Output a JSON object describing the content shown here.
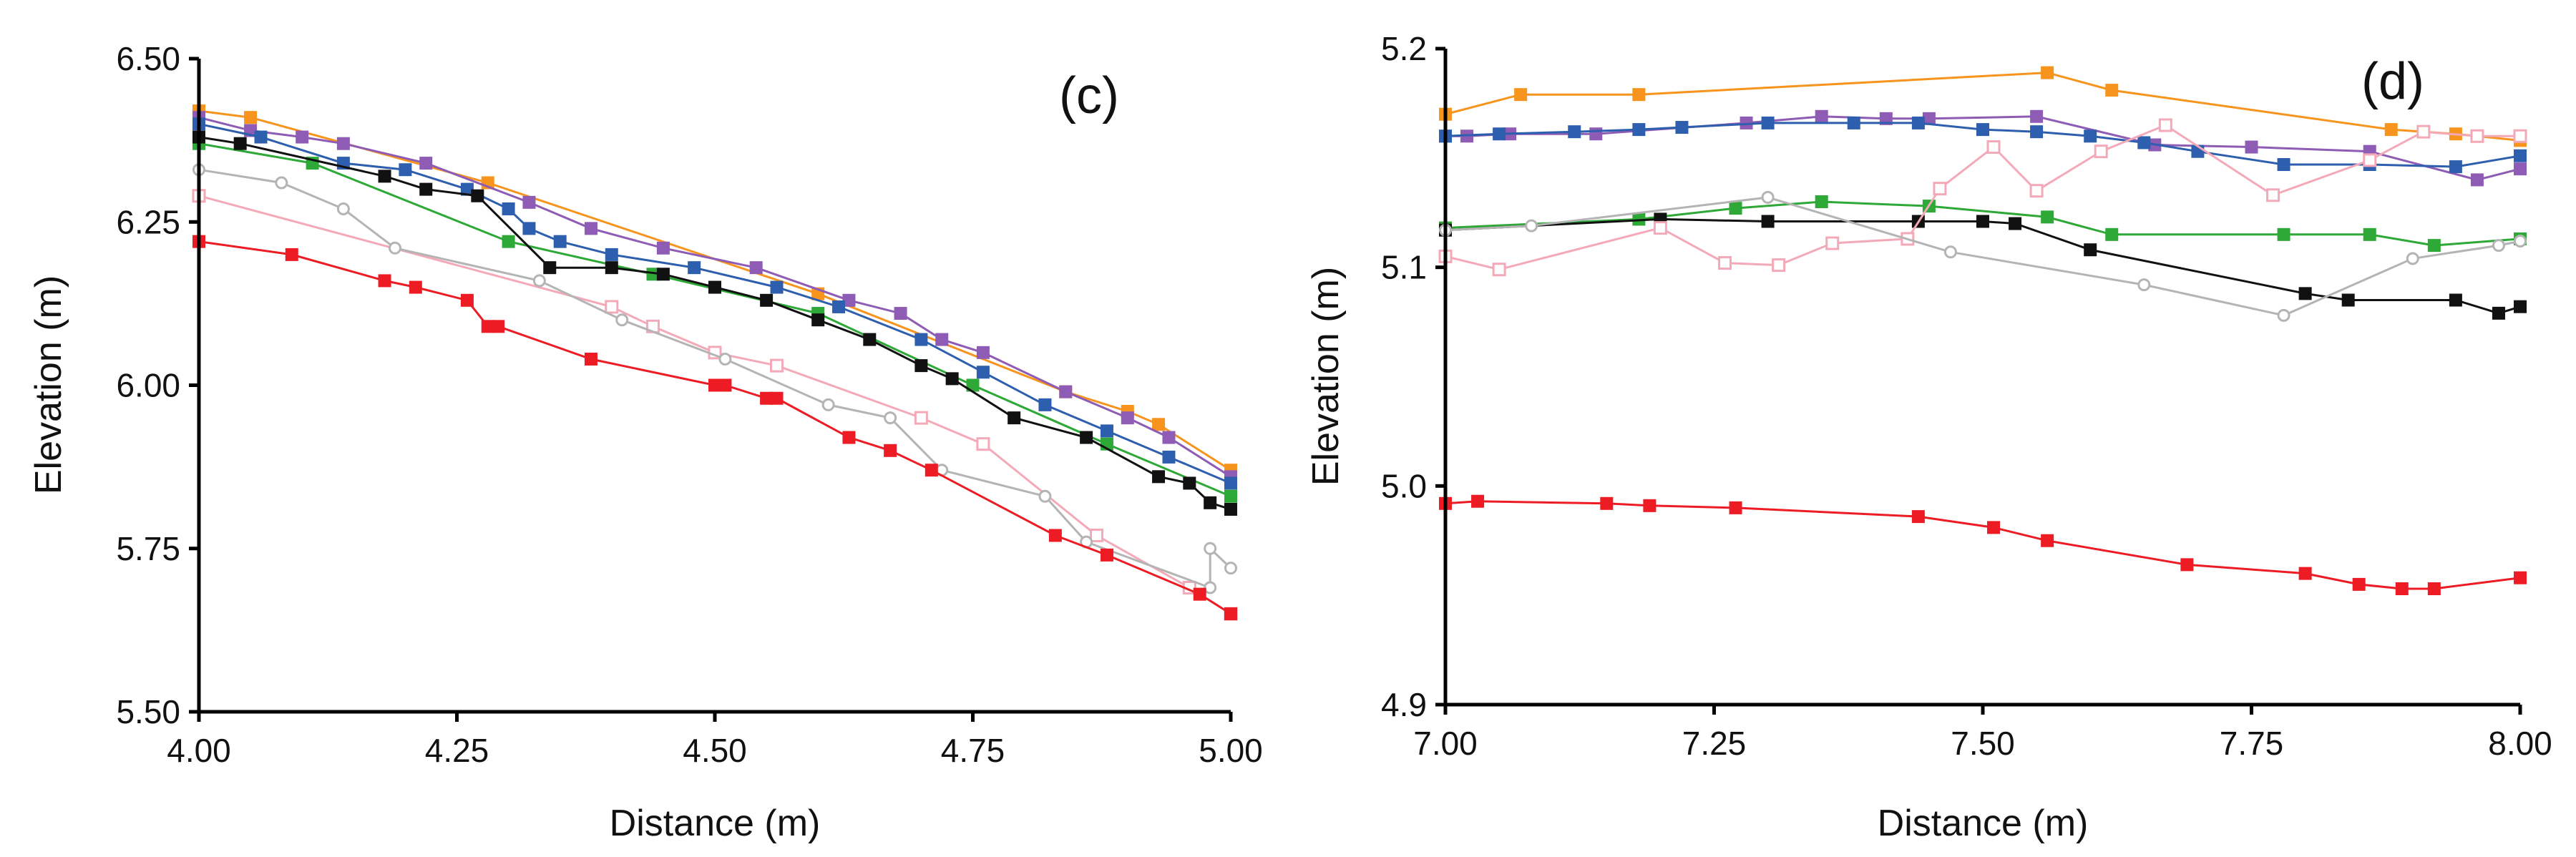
{
  "chart_data": [
    {
      "type": "line",
      "panel_label": "(c)",
      "xlabel": "Distance (m)",
      "ylabel": "Elevation (m)",
      "xlim": [
        4.0,
        5.0
      ],
      "ylim": [
        5.5,
        6.5
      ],
      "xticks": [
        4.0,
        4.25,
        4.5,
        4.75,
        5.0
      ],
      "yticks": [
        5.5,
        5.75,
        6.0,
        6.25,
        6.5
      ],
      "xtick_labels": [
        "4.00",
        "4.25",
        "4.50",
        "4.75",
        "5.00"
      ],
      "ytick_labels": [
        "5.50",
        "5.75",
        "6.00",
        "6.25",
        "6.50"
      ],
      "series": [
        {
          "name": "orange",
          "color": "#f7941d",
          "marker": "filled-square",
          "x": [
            4.0,
            4.05,
            4.28,
            4.6,
            4.84,
            4.9,
            4.93,
            5.0
          ],
          "y": [
            6.42,
            6.41,
            6.31,
            6.14,
            5.99,
            5.96,
            5.94,
            5.87
          ]
        },
        {
          "name": "purple",
          "color": "#8e5bb5",
          "marker": "filled-square",
          "x": [
            4.0,
            4.05,
            4.1,
            4.14,
            4.22,
            4.32,
            4.38,
            4.45,
            4.54,
            4.63,
            4.68,
            4.72,
            4.76,
            4.84,
            4.9,
            4.94,
            5.0
          ],
          "y": [
            6.41,
            6.39,
            6.38,
            6.37,
            6.34,
            6.28,
            6.24,
            6.21,
            6.18,
            6.13,
            6.11,
            6.07,
            6.05,
            5.99,
            5.95,
            5.92,
            5.86
          ]
        },
        {
          "name": "blue",
          "color": "#2e5fae",
          "marker": "filled-square",
          "x": [
            4.0,
            4.06,
            4.14,
            4.2,
            4.26,
            4.3,
            4.32,
            4.35,
            4.4,
            4.48,
            4.56,
            4.62,
            4.7,
            4.76,
            4.82,
            4.88,
            4.94,
            5.0
          ],
          "y": [
            6.4,
            6.38,
            6.34,
            6.33,
            6.3,
            6.27,
            6.24,
            6.22,
            6.2,
            6.18,
            6.15,
            6.12,
            6.07,
            6.02,
            5.97,
            5.93,
            5.89,
            5.85
          ]
        },
        {
          "name": "green",
          "color": "#2ea836",
          "marker": "filled-square",
          "x": [
            4.0,
            4.11,
            4.3,
            4.44,
            4.6,
            4.75,
            4.88,
            5.0
          ],
          "y": [
            6.37,
            6.34,
            6.22,
            6.17,
            6.11,
            6.0,
            5.91,
            5.83
          ]
        },
        {
          "name": "black",
          "color": "#111111",
          "marker": "filled-square",
          "x": [
            4.0,
            4.04,
            4.18,
            4.22,
            4.27,
            4.34,
            4.4,
            4.45,
            4.5,
            4.55,
            4.6,
            4.65,
            4.7,
            4.73,
            4.79,
            4.86,
            4.93,
            4.96,
            4.98,
            5.0
          ],
          "y": [
            6.38,
            6.37,
            6.32,
            6.3,
            6.29,
            6.18,
            6.18,
            6.17,
            6.15,
            6.13,
            6.1,
            6.07,
            6.03,
            6.01,
            5.95,
            5.92,
            5.86,
            5.85,
            5.82,
            5.81
          ]
        },
        {
          "name": "pink",
          "color": "#f4a9b8",
          "marker": "open-square",
          "x": [
            4.0,
            4.4,
            4.44,
            4.5,
            4.56,
            4.7,
            4.76,
            4.87,
            4.96,
            5.0
          ],
          "y": [
            6.29,
            6.12,
            6.09,
            6.05,
            6.03,
            5.95,
            5.91,
            5.77,
            5.69,
            5.65
          ]
        },
        {
          "name": "gray",
          "color": "#b4b4b4",
          "marker": "open-circle",
          "x": [
            4.0,
            4.08,
            4.14,
            4.19,
            4.33,
            4.41,
            4.51,
            4.61,
            4.67,
            4.72,
            4.82,
            4.86,
            4.98,
            4.98,
            5.0
          ],
          "y": [
            6.33,
            6.31,
            6.27,
            6.21,
            6.16,
            6.1,
            6.04,
            5.97,
            5.95,
            5.87,
            5.83,
            5.76,
            5.69,
            5.75,
            5.72
          ]
        },
        {
          "name": "red",
          "color": "#ed1c24",
          "marker": "filled-square",
          "x": [
            4.0,
            4.09,
            4.18,
            4.21,
            4.26,
            4.28,
            4.29,
            4.38,
            4.5,
            4.51,
            4.55,
            4.56,
            4.63,
            4.67,
            4.71,
            4.83,
            4.88,
            4.97,
            5.0
          ],
          "y": [
            6.22,
            6.2,
            6.16,
            6.15,
            6.13,
            6.09,
            6.09,
            6.04,
            6.0,
            6.0,
            5.98,
            5.98,
            5.92,
            5.9,
            5.87,
            5.77,
            5.74,
            5.68,
            5.65
          ]
        }
      ]
    },
    {
      "type": "line",
      "panel_label": "(d)",
      "xlabel": "Distance (m)",
      "ylabel": "Elevation (m)",
      "xlim": [
        7.0,
        8.0
      ],
      "ylim": [
        4.9,
        5.2
      ],
      "xticks": [
        7.0,
        7.25,
        7.5,
        7.75,
        8.0
      ],
      "yticks": [
        4.9,
        5.0,
        5.1,
        5.2
      ],
      "xtick_labels": [
        "7.00",
        "7.25",
        "7.50",
        "7.75",
        "8.00"
      ],
      "ytick_labels": [
        "4.9",
        "5.0",
        "5.1",
        "5.2"
      ],
      "series": [
        {
          "name": "orange",
          "color": "#f7941d",
          "marker": "filled-square",
          "x": [
            7.0,
            7.07,
            7.18,
            7.56,
            7.62,
            7.88,
            7.94,
            8.0
          ],
          "y": [
            5.17,
            5.179,
            5.179,
            5.189,
            5.181,
            5.163,
            5.161,
            5.158
          ]
        },
        {
          "name": "purple",
          "color": "#8e5bb5",
          "marker": "filled-square",
          "x": [
            7.0,
            7.02,
            7.06,
            7.14,
            7.28,
            7.35,
            7.41,
            7.45,
            7.55,
            7.66,
            7.75,
            7.86,
            7.96,
            8.0
          ],
          "y": [
            5.16,
            5.16,
            5.161,
            5.161,
            5.166,
            5.169,
            5.168,
            5.168,
            5.169,
            5.156,
            5.155,
            5.153,
            5.14,
            5.145
          ]
        },
        {
          "name": "blue",
          "color": "#2e5fae",
          "marker": "filled-square",
          "x": [
            7.0,
            7.05,
            7.12,
            7.18,
            7.22,
            7.3,
            7.38,
            7.44,
            7.5,
            7.55,
            7.6,
            7.65,
            7.7,
            7.78,
            7.86,
            7.94,
            8.0
          ],
          "y": [
            5.16,
            5.161,
            5.162,
            5.163,
            5.164,
            5.166,
            5.166,
            5.166,
            5.163,
            5.162,
            5.16,
            5.157,
            5.153,
            5.147,
            5.147,
            5.146,
            5.151
          ]
        },
        {
          "name": "green",
          "color": "#2ea836",
          "marker": "filled-square",
          "x": [
            7.0,
            7.18,
            7.27,
            7.35,
            7.45,
            7.56,
            7.62,
            7.78,
            7.86,
            7.92,
            8.0
          ],
          "y": [
            5.118,
            5.122,
            5.127,
            5.13,
            5.128,
            5.123,
            5.115,
            5.115,
            5.115,
            5.11,
            5.113
          ]
        },
        {
          "name": "black",
          "color": "#111111",
          "marker": "filled-square",
          "x": [
            7.0,
            7.2,
            7.3,
            7.44,
            7.5,
            7.53,
            7.6,
            7.8,
            7.84,
            7.94,
            7.98,
            8.0
          ],
          "y": [
            5.117,
            5.122,
            5.121,
            5.121,
            5.121,
            5.12,
            5.108,
            5.088,
            5.085,
            5.085,
            5.079,
            5.082
          ]
        },
        {
          "name": "pink",
          "color": "#f4a9b8",
          "marker": "open-square",
          "x": [
            7.0,
            7.05,
            7.2,
            7.26,
            7.31,
            7.36,
            7.43,
            7.46,
            7.51,
            7.55,
            7.61,
            7.67,
            7.77,
            7.86,
            7.91,
            7.96,
            8.0
          ],
          "y": [
            5.105,
            5.099,
            5.118,
            5.102,
            5.101,
            5.111,
            5.113,
            5.136,
            5.155,
            5.135,
            5.153,
            5.165,
            5.133,
            5.149,
            5.162,
            5.16,
            5.16
          ]
        },
        {
          "name": "gray",
          "color": "#b4b4b4",
          "marker": "open-circle",
          "x": [
            7.0,
            7.08,
            7.3,
            7.47,
            7.65,
            7.78,
            7.9,
            7.98,
            8.0
          ],
          "y": [
            5.117,
            5.119,
            5.132,
            5.107,
            5.092,
            5.078,
            5.104,
            5.11,
            5.112
          ]
        },
        {
          "name": "red",
          "color": "#ed1c24",
          "marker": "filled-square",
          "x": [
            7.0,
            7.03,
            7.15,
            7.19,
            7.27,
            7.44,
            7.51,
            7.56,
            7.69,
            7.8,
            7.85,
            7.89,
            7.92,
            8.0
          ],
          "y": [
            4.992,
            4.993,
            4.992,
            4.991,
            4.99,
            4.986,
            4.981,
            4.975,
            4.964,
            4.96,
            4.955,
            4.953,
            4.953,
            4.958
          ]
        }
      ]
    }
  ]
}
